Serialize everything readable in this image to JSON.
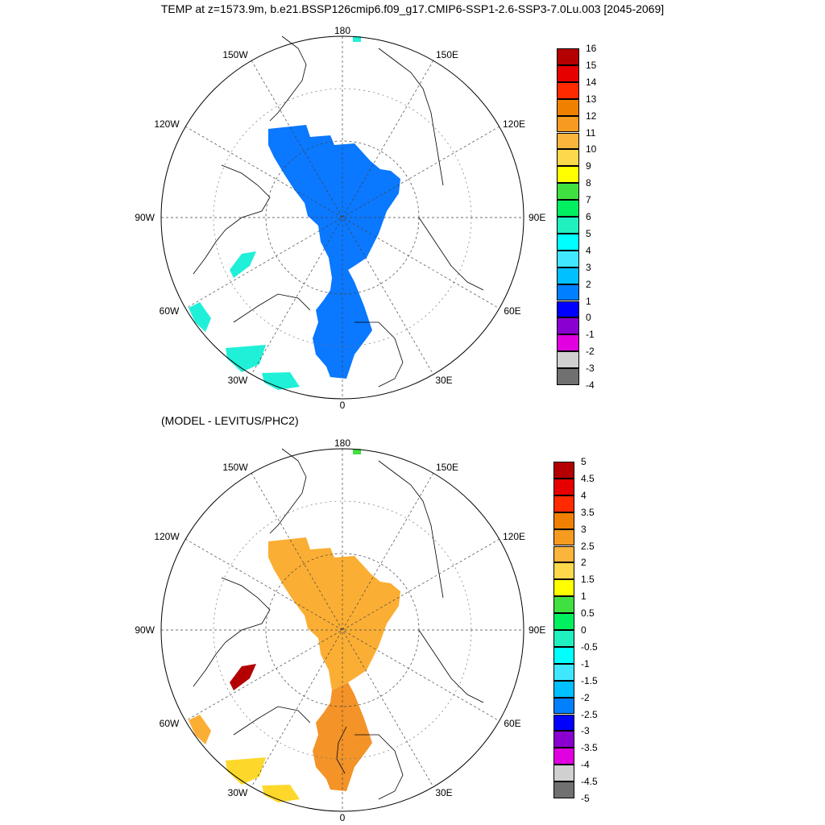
{
  "title": "TEMP at z=1573.9m, b.e21.BSSP126cmip6.f09_g17.CMIP6-SSP1-2.6-SSP3-7.0Lu.003 [2045-2069]",
  "subtitle": "(MODEL - LEVITUS/PHC2)",
  "map_labels": {
    "top": "180",
    "bottom": "0",
    "left": "90W",
    "right": "90E",
    "upper_left_1": "150W",
    "upper_left_2": "120W",
    "upper_right_1": "150E",
    "upper_right_2": "120E",
    "lower_left_1": "60W",
    "lower_left_2": "30W",
    "lower_right_1": "60E",
    "lower_right_2": "30E"
  },
  "top_colorbar": {
    "labels": [
      "16",
      "15",
      "14",
      "13",
      "12",
      "11",
      "10",
      "9",
      "8",
      "7",
      "6",
      "5",
      "4",
      "3",
      "2",
      "1",
      "0",
      "-1",
      "-2",
      "-3",
      "-4"
    ],
    "colors": [
      "#b40000",
      "#e60000",
      "#ff2a00",
      "#f08000",
      "#f79b20",
      "#fbb43c",
      "#fdd84a",
      "#ffff00",
      "#40e040",
      "#00f060",
      "#20f0c0",
      "#00ffff",
      "#40e8ff",
      "#00c0ff",
      "#0080ff",
      "#0000ff",
      "#8a00d0",
      "#e000e0",
      "#d0d0d0",
      "#707070"
    ]
  },
  "bottom_colorbar": {
    "labels": [
      "5",
      "4.5",
      "4",
      "3.5",
      "3",
      "2.5",
      "2",
      "1.5",
      "1",
      "0.5",
      "0",
      "-0.5",
      "-1",
      "-1.5",
      "-2",
      "-2.5",
      "-3",
      "-3.5",
      "-4",
      "-4.5",
      "-5"
    ],
    "colors": [
      "#b40000",
      "#e60000",
      "#ff2a00",
      "#f08000",
      "#f79b20",
      "#fbb43c",
      "#fdd84a",
      "#ffff00",
      "#40e040",
      "#00f060",
      "#20f0c0",
      "#00ffff",
      "#40e8ff",
      "#00c0ff",
      "#0080ff",
      "#0000ff",
      "#8a00d0",
      "#e000e0",
      "#d0d0d0",
      "#707070"
    ]
  },
  "colors": {
    "top_field": "#0a78ff",
    "top_shelf": "#20f0d8",
    "bottom_field": "#fbae34",
    "bottom_atl": "#f39328",
    "bottom_hot": "#b40000",
    "bottom_yellow": "#fdd82a"
  }
}
